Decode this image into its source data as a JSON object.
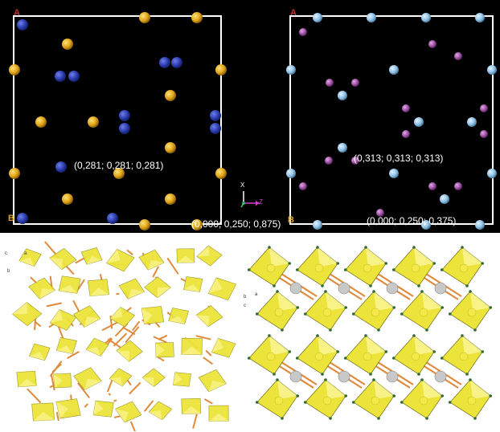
{
  "panels": {
    "top_left": {
      "corner_a": "A",
      "corner_b": "B",
      "coord_center": "(0,281; 0,281; 0,281)",
      "coord_bottom": "(0,000; 0,250; 0,875)",
      "atom_colors": {
        "primary": "#2a3bb0",
        "secondary": "#e0a317"
      }
    },
    "top_right": {
      "corner_a": "A",
      "corner_b": "B",
      "coord_center": "(0,313; 0,313; 0,313)",
      "coord_bottom": "(0,000; 0,250; 0,375)",
      "atom_colors": {
        "primary": "#8fc0e6",
        "secondary": "#9b4fa0"
      }
    },
    "axis_widget": {
      "x_label": "X",
      "z_label": "Z"
    },
    "bottom_left": {
      "axis_c": "c",
      "axis_a": "a",
      "axis_b": "b",
      "polyhedra_color": "#ece43a"
    },
    "bottom_right": {
      "axis_b": "b",
      "axis_a": "a",
      "axis_c": "c",
      "polyhedra_color": "#ece43a"
    }
  }
}
